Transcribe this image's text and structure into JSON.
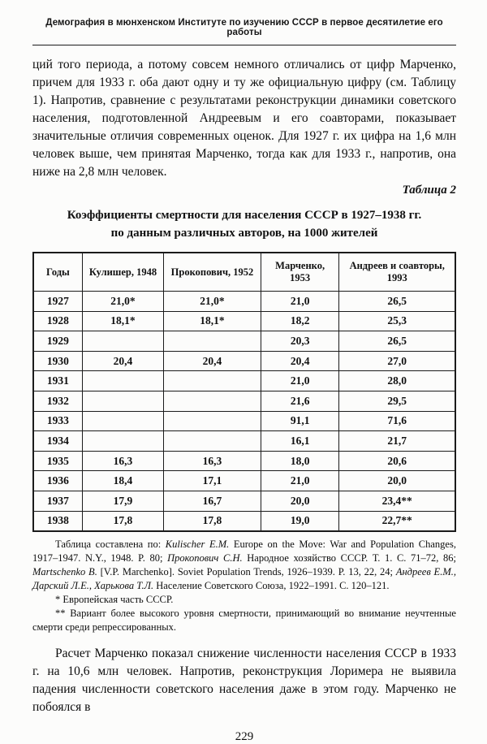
{
  "page": {
    "running_head": "Демография в мюнхенском Институте по изучению СССР в первое десятилетие его работы",
    "page_number": "229"
  },
  "body": {
    "paragraph_1": "ций того периода, а потому совсем немного отличались от цифр Марченко, причем для 1933 г. оба дают одну и ту же официальную цифру (см. Таблицу 1). Напротив, сравнение с результатами реконструкции динамики советского населения, подготовленной Андреевым и его соавторами, показывает значительные отличия современных оценок. Для 1927 г. их цифра на 1,6 млн человек выше, чем принятая Марченко, тогда как для 1933 г., напротив, она ниже на 2,8 млн человек.",
    "paragraph_2": "Расчет Марченко показал снижение численности населения СССР в 1933 г. на 10,6 млн человек. Напротив, реконструкция Лоримера не выявила падения численности советского населения даже в этом году. Марченко не побоялся в"
  },
  "table": {
    "caption_label": "Таблица 2",
    "title_line1": "Коэффициенты смертности для населения СССР в 1927–1938 гг.",
    "title_line2": "по данным различных авторов, на 1000 жителей",
    "columns": [
      "Годы",
      "Кулишер, 1948",
      "Прокопович, 1952",
      "Марченко, 1953",
      "Андреев и соавторы, 1993"
    ],
    "rows": [
      [
        "1927",
        "21,0*",
        "21,0*",
        "21,0",
        "26,5"
      ],
      [
        "1928",
        "18,1*",
        "18,1*",
        "18,2",
        "25,3"
      ],
      [
        "1929",
        "",
        "",
        "20,3",
        "26,5"
      ],
      [
        "1930",
        "20,4",
        "20,4",
        "20,4",
        "27,0"
      ],
      [
        "1931",
        "",
        "",
        "21,0",
        "28,0"
      ],
      [
        "1932",
        "",
        "",
        "21,6",
        "29,5"
      ],
      [
        "1933",
        "",
        "",
        "91,1",
        "71,6"
      ],
      [
        "1934",
        "",
        "",
        "16,1",
        "21,7"
      ],
      [
        "1935",
        "16,3",
        "16,3",
        "18,0",
        "20,6"
      ],
      [
        "1936",
        "18,4",
        "17,1",
        "21,0",
        "20,0"
      ],
      [
        "1937",
        "17,9",
        "16,7",
        "20,0",
        "23,4**"
      ],
      [
        "1938",
        "17,8",
        "17,8",
        "19,0",
        "22,7**"
      ]
    ]
  },
  "notes": {
    "source_segments": [
      {
        "text": "Таблица составлена по: ",
        "italic": false
      },
      {
        "text": "Kulischer E.M.",
        "italic": true
      },
      {
        "text": " Europe on the Move: War and Population Changes, 1917–1947. N.Y., 1948. P. 80; ",
        "italic": false
      },
      {
        "text": "Прокопович С.Н.",
        "italic": true
      },
      {
        "text": " Народное хозяйство СССР. Т. 1. С. 71–72, 86; ",
        "italic": false
      },
      {
        "text": "Martschenko B.",
        "italic": true
      },
      {
        "text": " [V.P. Marchenko]. Soviet Population Trends, 1926–1939. P. 13, 22, 24; ",
        "italic": false
      },
      {
        "text": "Андреев Е.М., Дарский Л.Е., Харькова Т.Л.",
        "italic": true
      },
      {
        "text": " Население Советского Союза, 1922–1991. С. 120–121.",
        "italic": false
      }
    ],
    "note_star": "* Европейская часть СССР.",
    "note_double_star": "** Вариант более высокого уровня смертности, принимающий во внимание неучтенные смерти среди репрессированных."
  }
}
